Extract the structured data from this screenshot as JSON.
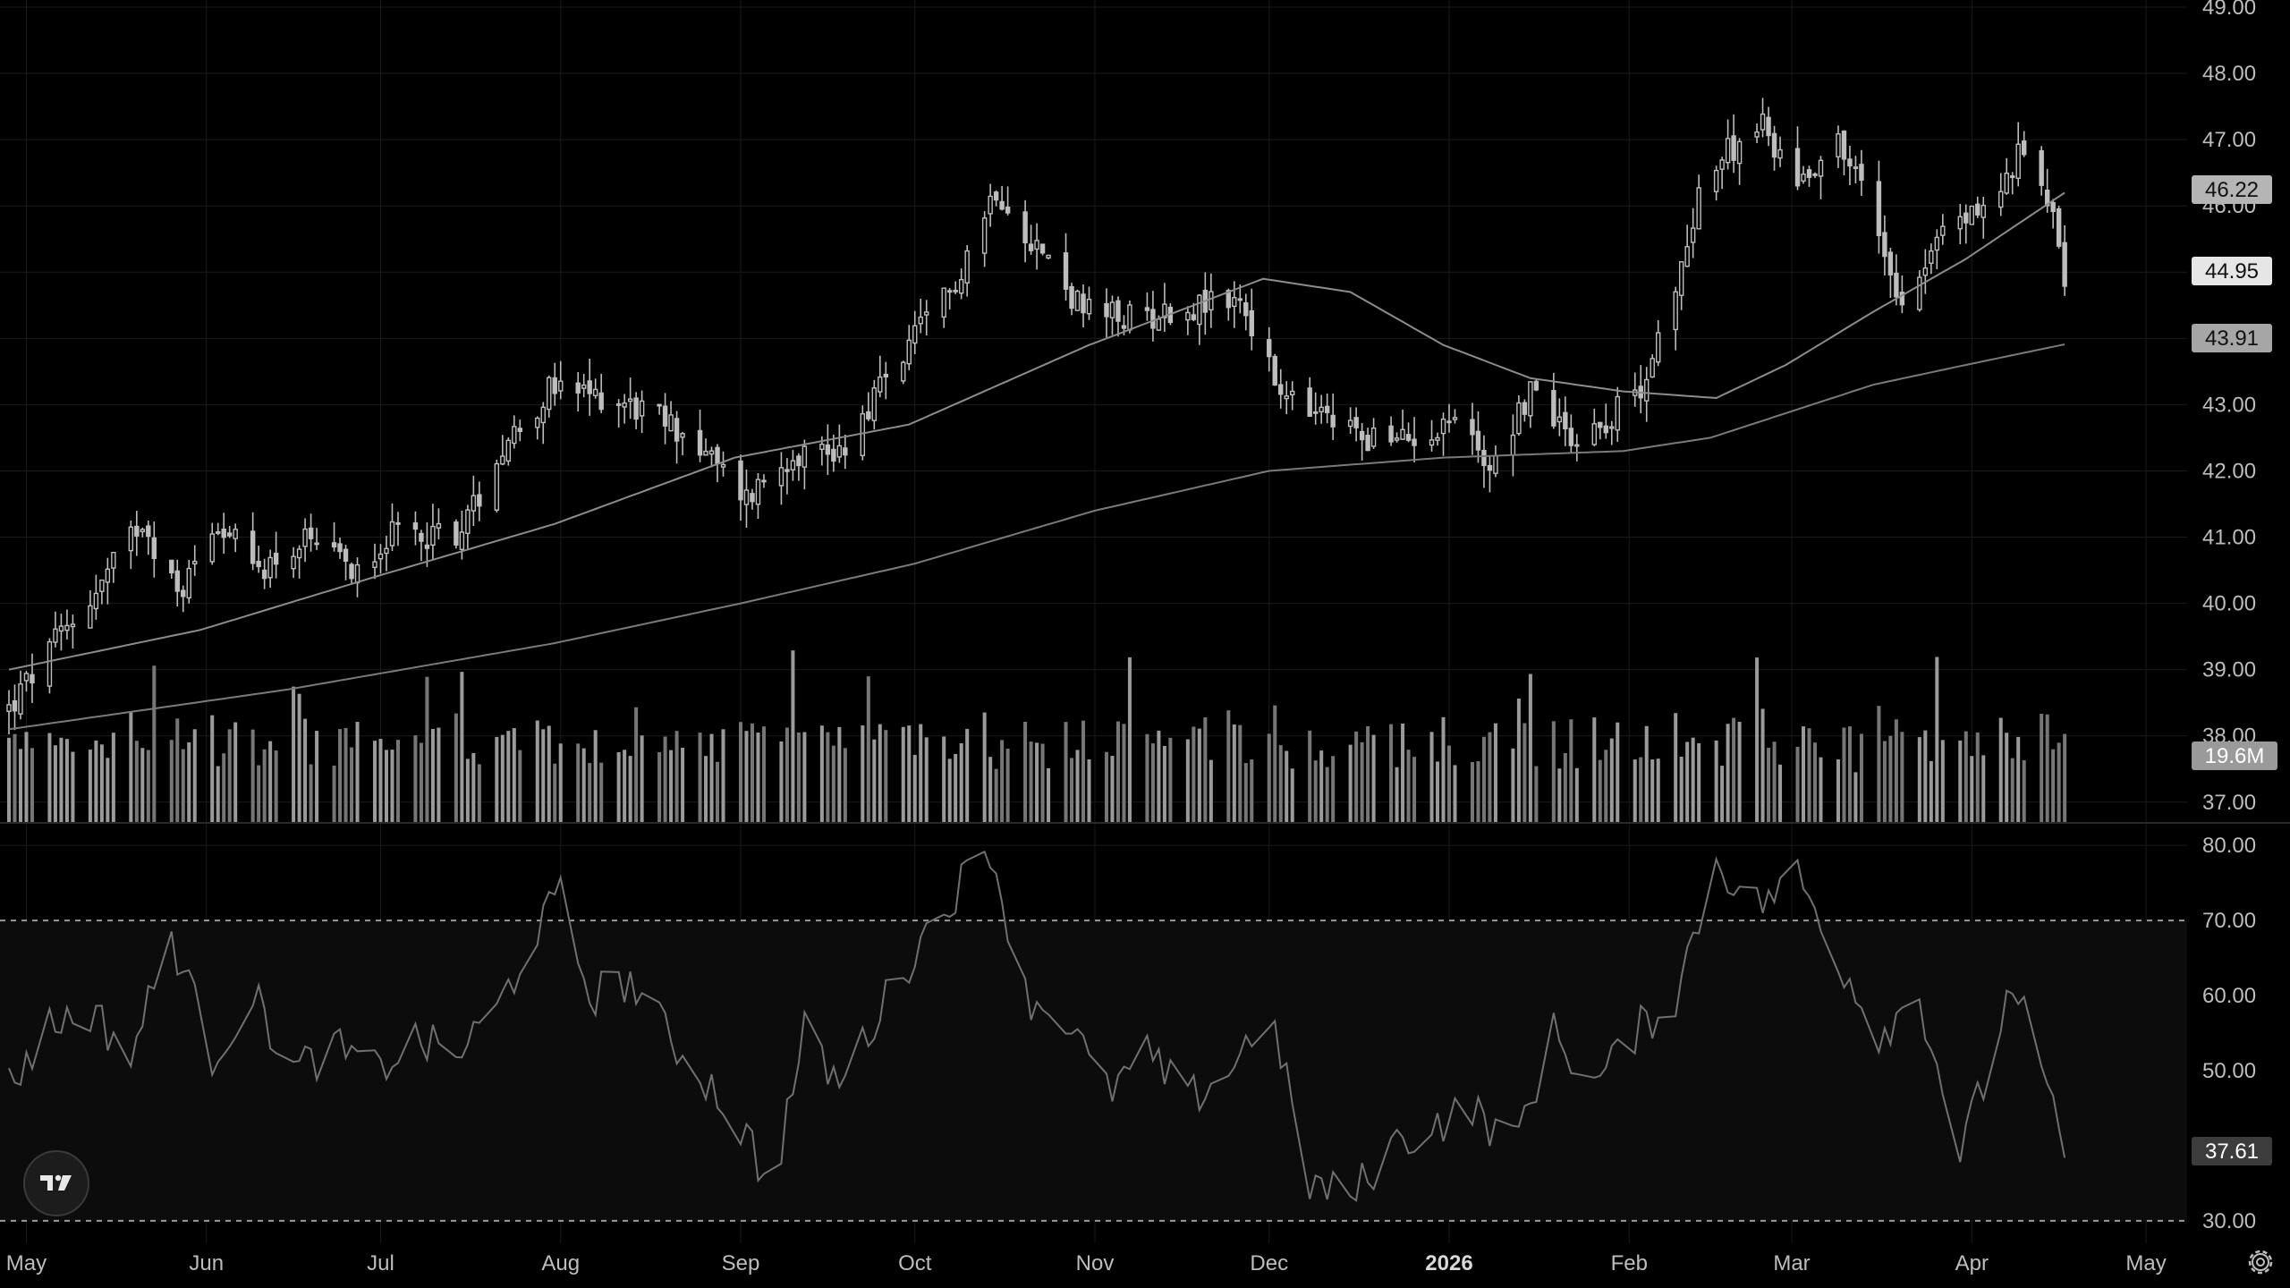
{
  "theme": {
    "background": "#000000",
    "grid": "#1a1a1a",
    "candle": "#bdbdbd",
    "ma_fast": "#8c8c8c",
    "ma_slow": "#7a7a7a",
    "volume": "#8f8f8f",
    "rsi_line": "#707070",
    "rsi_band": "#0c0c0c"
  },
  "toolbar": {
    "logo_icon": "tradingview-logo-icon",
    "settings_icon": "gear-icon"
  },
  "price_axis": {
    "ticks": [
      "49.00",
      "48.00",
      "47.00",
      "46.00",
      "45.00",
      "44.00",
      "43.00",
      "42.00",
      "41.00",
      "40.00",
      "39.00",
      "38.00",
      "37.00"
    ]
  },
  "rsi_axis": {
    "ticks": [
      "80.00",
      "70.00",
      "60.00",
      "50.00",
      "40.00",
      "30.00"
    ]
  },
  "time_axis": {
    "labels": [
      "May",
      "Jun",
      "Jul",
      "Aug",
      "Sep",
      "Oct",
      "Nov",
      "Dec",
      "2026",
      "Feb",
      "Mar",
      "Apr",
      "May"
    ]
  },
  "tags": {
    "last_price": "44.95",
    "ma_fast": "46.22",
    "ma_slow": "43.91",
    "volume": "19.6M",
    "rsi": "37.61"
  },
  "chart_data": {
    "type": "candlestick",
    "y_range": [
      36.7,
      49.0
    ],
    "rsi_range": [
      27.0,
      83.0
    ],
    "rsi_bands": [
      70,
      30
    ],
    "x_range": [
      "2025-04-28",
      "2026-05-05"
    ],
    "last_bar": "2026-04-17",
    "anchors": [
      [
        "2025-04-28",
        38.4
      ],
      [
        "2025-05-06",
        39.4
      ],
      [
        "2025-05-14",
        40.3
      ],
      [
        "2025-05-21",
        41.3
      ],
      [
        "2025-05-27",
        40.1
      ],
      [
        "2025-06-03",
        41.3
      ],
      [
        "2025-06-09",
        40.5
      ],
      [
        "2025-06-18",
        40.9
      ],
      [
        "2025-06-26",
        40.5
      ],
      [
        "2025-07-02",
        41.0
      ],
      [
        "2025-07-15",
        41.1
      ],
      [
        "2025-07-22",
        42.4
      ],
      [
        "2025-07-30",
        43.2
      ],
      [
        "2025-08-11",
        43.1
      ],
      [
        "2025-08-22",
        42.6
      ],
      [
        "2025-09-02",
        41.6
      ],
      [
        "2025-09-10",
        42.3
      ],
      [
        "2025-09-18",
        42.3
      ],
      [
        "2025-09-26",
        43.4
      ],
      [
        "2025-10-07",
        44.7
      ],
      [
        "2025-10-15",
        46.3
      ],
      [
        "2025-10-22",
        45.4
      ],
      [
        "2025-10-30",
        44.4
      ],
      [
        "2025-11-06",
        44.3
      ],
      [
        "2025-11-13",
        44.4
      ],
      [
        "2025-11-26",
        44.6
      ],
      [
        "2025-12-03",
        43.1
      ],
      [
        "2025-12-10",
        42.8
      ],
      [
        "2025-12-22",
        42.4
      ],
      [
        "2026-01-02",
        42.8
      ],
      [
        "2026-01-08",
        42.1
      ],
      [
        "2026-01-15",
        43.2
      ],
      [
        "2026-01-23",
        42.5
      ],
      [
        "2026-02-02",
        43.1
      ],
      [
        "2026-02-09",
        44.6
      ],
      [
        "2026-02-13",
        46.3
      ],
      [
        "2026-02-23",
        47.3
      ],
      [
        "2026-03-02",
        46.4
      ],
      [
        "2026-03-09",
        47.0
      ],
      [
        "2026-03-13",
        46.3
      ],
      [
        "2026-03-20",
        44.6
      ],
      [
        "2026-03-27",
        45.6
      ],
      [
        "2026-04-06",
        46.2
      ],
      [
        "2026-04-10",
        46.9
      ],
      [
        "2026-04-15",
        46.0
      ],
      [
        "2026-04-17",
        44.95
      ]
    ],
    "ma_fast_points": [
      [
        "2025-04-28",
        39.0
      ],
      [
        "2025-05-31",
        39.6
      ],
      [
        "2025-06-30",
        40.4
      ],
      [
        "2025-07-31",
        41.2
      ],
      [
        "2025-08-31",
        42.2
      ],
      [
        "2025-09-30",
        42.7
      ],
      [
        "2025-10-31",
        43.9
      ],
      [
        "2025-11-30",
        44.9
      ],
      [
        "2025-12-15",
        44.7
      ],
      [
        "2025-12-31",
        43.9
      ],
      [
        "2026-01-15",
        43.4
      ],
      [
        "2026-01-31",
        43.2
      ],
      [
        "2026-02-16",
        43.1
      ],
      [
        "2026-02-28",
        43.6
      ],
      [
        "2026-03-15",
        44.4
      ],
      [
        "2026-03-31",
        45.2
      ],
      [
        "2026-04-17",
        46.2
      ]
    ],
    "ma_slow_points": [
      [
        "2025-04-28",
        38.1
      ],
      [
        "2025-06-15",
        38.7
      ],
      [
        "2025-07-31",
        39.4
      ],
      [
        "2025-09-01",
        40.0
      ],
      [
        "2025-10-01",
        40.6
      ],
      [
        "2025-11-01",
        41.4
      ],
      [
        "2025-12-01",
        42.0
      ],
      [
        "2025-12-31",
        42.2
      ],
      [
        "2026-01-31",
        42.3
      ],
      [
        "2026-02-15",
        42.5
      ],
      [
        "2026-03-01",
        42.9
      ],
      [
        "2026-03-15",
        43.3
      ],
      [
        "2026-03-31",
        43.6
      ],
      [
        "2026-04-17",
        43.91
      ]
    ],
    "volume": {
      "max_label": "19.6M",
      "scale_note": "relative heights"
    },
    "rsi_anchors": [
      [
        "2025-04-28",
        48
      ],
      [
        "2025-05-05",
        56
      ],
      [
        "2025-05-12",
        58
      ],
      [
        "2025-05-19",
        52
      ],
      [
        "2025-05-26",
        68
      ],
      [
        "2025-06-02",
        52
      ],
      [
        "2025-06-09",
        60
      ],
      [
        "2025-06-16",
        50
      ],
      [
        "2025-06-23",
        53
      ],
      [
        "2025-06-30",
        50
      ],
      [
        "2025-07-07",
        54
      ],
      [
        "2025-07-14",
        52
      ],
      [
        "2025-07-21",
        58
      ],
      [
        "2025-07-28",
        69
      ],
      [
        "2025-08-01",
        73
      ],
      [
        "2025-08-06",
        60
      ],
      [
        "2025-08-13",
        62
      ],
      [
        "2025-08-20",
        54
      ],
      [
        "2025-08-27",
        48
      ],
      [
        "2025-09-03",
        40
      ],
      [
        "2025-09-06",
        33
      ],
      [
        "2025-09-12",
        55
      ],
      [
        "2025-09-18",
        48
      ],
      [
        "2025-09-25",
        58
      ],
      [
        "2025-10-01",
        66
      ],
      [
        "2025-10-08",
        74
      ],
      [
        "2025-10-14",
        80
      ],
      [
        "2025-10-20",
        60
      ],
      [
        "2025-10-27",
        57
      ],
      [
        "2025-11-03",
        47
      ],
      [
        "2025-11-10",
        52
      ],
      [
        "2025-11-17",
        46
      ],
      [
        "2025-11-24",
        50
      ],
      [
        "2025-12-01",
        58
      ],
      [
        "2025-12-08",
        35
      ],
      [
        "2025-12-15",
        33
      ],
      [
        "2025-12-22",
        40
      ],
      [
        "2025-12-30",
        43
      ],
      [
        "2026-01-05",
        45
      ],
      [
        "2026-01-12",
        40
      ],
      [
        "2026-01-19",
        55
      ],
      [
        "2026-01-26",
        48
      ],
      [
        "2026-02-02",
        55
      ],
      [
        "2026-02-09",
        60
      ],
      [
        "2026-02-16",
        78
      ],
      [
        "2026-02-23",
        72
      ],
      [
        "2026-03-02",
        76
      ],
      [
        "2026-03-09",
        65
      ],
      [
        "2026-03-16",
        55
      ],
      [
        "2026-03-23",
        60
      ],
      [
        "2026-03-30",
        39
      ],
      [
        "2026-04-03",
        48
      ],
      [
        "2026-04-08",
        62
      ],
      [
        "2026-04-13",
        50
      ],
      [
        "2026-04-17",
        37.61
      ]
    ]
  }
}
